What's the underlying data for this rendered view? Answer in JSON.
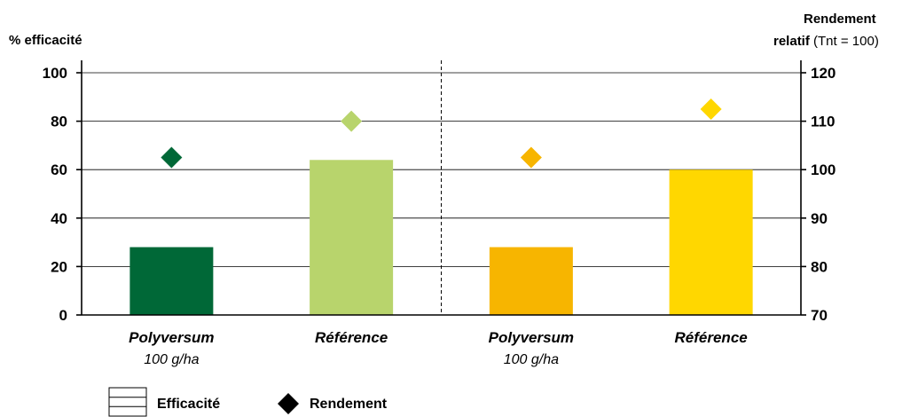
{
  "chart_data": {
    "type": "bar",
    "categories": [
      {
        "label": "Polyversum",
        "sublabel": "100 g/ha"
      },
      {
        "label": "Référence",
        "sublabel": ""
      },
      {
        "label": "Polyversum",
        "sublabel": "100 g/ha"
      },
      {
        "label": "Référence",
        "sublabel": ""
      }
    ],
    "series": [
      {
        "name": "Efficacité",
        "type": "bar",
        "axis": "left",
        "values": [
          28,
          64,
          28,
          60
        ]
      },
      {
        "name": "Rendement",
        "type": "scatter",
        "marker": "diamond",
        "axis": "right",
        "values": [
          102.5,
          110,
          102.5,
          112.5
        ]
      }
    ],
    "colors": [
      "#006837",
      "#b8d46c",
      "#f7b500",
      "#ffd700"
    ],
    "ylabel_left": "% efficacité",
    "ylabel_right_bold_1": "Rendement",
    "ylabel_right_bold_2": "relatif",
    "ylabel_right_normal": " (Tnt = 100)",
    "ylim_left": [
      0,
      100
    ],
    "yticks_left": [
      0,
      20,
      40,
      60,
      80,
      100
    ],
    "ylim_right": [
      70,
      120
    ],
    "yticks_right": [
      70,
      80,
      90,
      100,
      110,
      120
    ],
    "grid": true,
    "divider": "dashed vertical line between category 2 and 3",
    "legend_position": "bottom-left",
    "legend": {
      "bar_label": "Efficacité",
      "marker_label": "Rendement"
    }
  }
}
